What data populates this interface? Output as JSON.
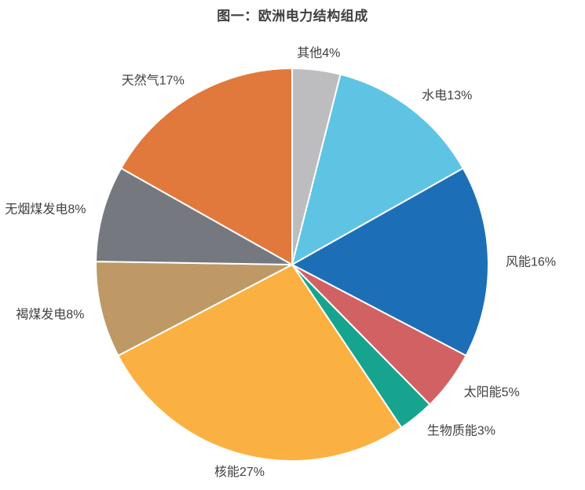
{
  "page": {
    "background": "#ffffff"
  },
  "header": {
    "title": "图一：欧洲电力结构组成",
    "title_color": "#3f3f3f"
  },
  "chart_data": {
    "type": "pie",
    "title": "图一：欧洲电力结构组成",
    "unit": "%",
    "start_angle_deg": 0,
    "direction": "clockwise",
    "legend": "none",
    "label_position": "outside",
    "label_color": "#404040",
    "slice_stroke_color": "#ffffff",
    "slices": [
      {
        "label": "其他",
        "value": 4,
        "display": "其他4%",
        "color": "#bdbdbf"
      },
      {
        "label": "水电",
        "value": 13,
        "display": "水电13%",
        "color": "#5fc4e4"
      },
      {
        "label": "风能",
        "value": 16,
        "display": "风能16%",
        "color": "#1c6fb6"
      },
      {
        "label": "太阳能",
        "value": 5,
        "display": "太阳能5%",
        "color": "#d26163"
      },
      {
        "label": "生物质能",
        "value": 3,
        "display": "生物质能3%",
        "color": "#16a48e"
      },
      {
        "label": "核能",
        "value": 27,
        "display": "核能27%",
        "color": "#fbb042"
      },
      {
        "label": "褐煤发电",
        "value": 8,
        "display": "褐煤发电8%",
        "color": "#be9966"
      },
      {
        "label": "无烟煤发电",
        "value": 8,
        "display": "无烟煤发电8%",
        "color": "#75787e"
      },
      {
        "label": "天然气",
        "value": 17,
        "display": "天然气17%",
        "color": "#e1793c"
      }
    ]
  }
}
